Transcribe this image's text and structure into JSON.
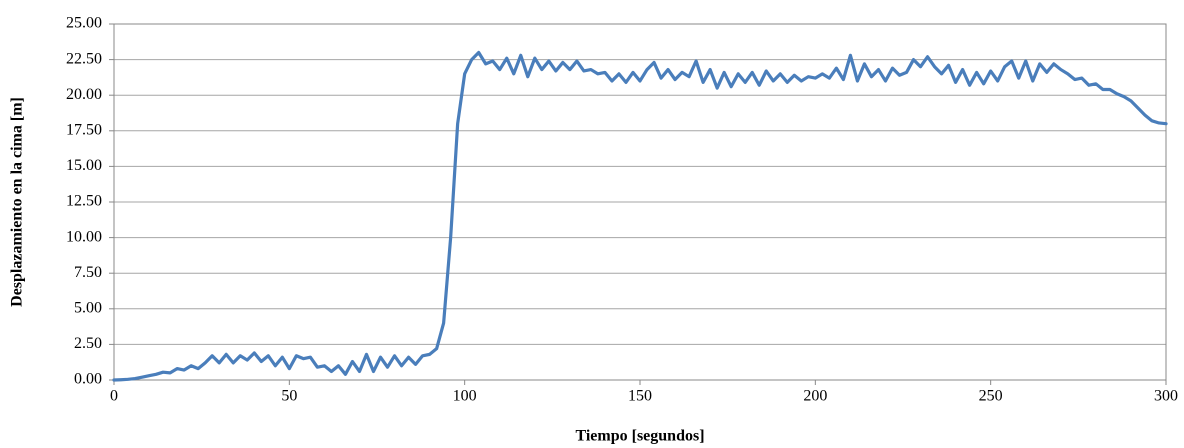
{
  "chart_data": {
    "type": "line",
    "xlabel": "Tiempo [segundos]",
    "ylabel": "Desplazamiento en la cima [m]",
    "color": "#4a7ebb",
    "grid": true,
    "x": [
      0,
      2,
      4,
      6,
      8,
      10,
      12,
      14,
      16,
      18,
      20,
      22,
      24,
      26,
      28,
      30,
      32,
      34,
      36,
      38,
      40,
      42,
      44,
      46,
      48,
      50,
      52,
      54,
      56,
      58,
      60,
      62,
      64,
      66,
      68,
      70,
      72,
      74,
      76,
      78,
      80,
      82,
      84,
      86,
      88,
      90,
      92,
      94,
      96,
      98,
      100,
      102,
      104,
      106,
      108,
      110,
      112,
      114,
      116,
      118,
      120,
      122,
      124,
      126,
      128,
      130,
      132,
      134,
      136,
      138,
      140,
      142,
      144,
      146,
      148,
      150,
      152,
      154,
      156,
      158,
      160,
      162,
      164,
      166,
      168,
      170,
      172,
      174,
      176,
      178,
      180,
      182,
      184,
      186,
      188,
      190,
      192,
      194,
      196,
      198,
      200,
      202,
      204,
      206,
      208,
      210,
      212,
      214,
      216,
      218,
      220,
      222,
      224,
      226,
      228,
      230,
      232,
      234,
      236,
      238,
      240,
      242,
      244,
      246,
      248,
      250,
      252,
      254,
      256,
      258,
      260,
      262,
      264,
      266,
      268,
      270,
      272,
      274,
      276,
      278,
      280,
      282,
      284,
      286,
      288,
      290,
      292,
      294,
      296,
      298,
      300
    ],
    "values": [
      0,
      0.02,
      0.05,
      0.1,
      0.2,
      0.3,
      0.4,
      0.55,
      0.5,
      0.8,
      0.7,
      1.0,
      0.8,
      1.2,
      1.7,
      1.2,
      1.8,
      1.2,
      1.7,
      1.4,
      1.9,
      1.3,
      1.7,
      1.0,
      1.6,
      0.8,
      1.7,
      1.5,
      1.6,
      0.9,
      1.0,
      0.6,
      1.0,
      0.4,
      1.3,
      0.6,
      1.8,
      0.6,
      1.6,
      0.9,
      1.7,
      1.0,
      1.6,
      1.1,
      1.7,
      1.8,
      2.2,
      4.0,
      10.0,
      18.0,
      21.5,
      22.5,
      23.0,
      22.2,
      22.4,
      21.8,
      22.6,
      21.5,
      22.8,
      21.3,
      22.6,
      21.8,
      22.4,
      21.7,
      22.3,
      21.8,
      22.4,
      21.7,
      21.8,
      21.5,
      21.6,
      21.0,
      21.5,
      20.9,
      21.6,
      21.0,
      21.8,
      22.3,
      21.2,
      21.8,
      21.1,
      21.6,
      21.3,
      22.4,
      20.9,
      21.8,
      20.5,
      21.6,
      20.6,
      21.5,
      20.9,
      21.6,
      20.7,
      21.7,
      21.0,
      21.5,
      20.9,
      21.4,
      21.0,
      21.3,
      21.2,
      21.5,
      21.2,
      21.9,
      21.1,
      22.8,
      21.0,
      22.2,
      21.3,
      21.8,
      21.0,
      21.9,
      21.4,
      21.6,
      22.5,
      22.0,
      22.7,
      22.0,
      21.5,
      22.1,
      20.9,
      21.8,
      20.7,
      21.6,
      20.8,
      21.7,
      21.0,
      22.0,
      22.4,
      21.2,
      22.4,
      21.0,
      22.2,
      21.6,
      22.2,
      21.8,
      21.5,
      21.1,
      21.2,
      20.7,
      20.8,
      20.4,
      20.4,
      20.1,
      19.9,
      19.6,
      19.1,
      18.6,
      18.2,
      18.05,
      18.0
    ],
    "xlim": [
      0,
      300
    ],
    "xticks": [
      0,
      50,
      100,
      150,
      200,
      250,
      300
    ],
    "ylim": [
      0,
      25
    ],
    "yticks": [
      {
        "value": 0,
        "label": "0.00"
      },
      {
        "value": 2.5,
        "label": "2.50"
      },
      {
        "value": 5,
        "label": "5.00"
      },
      {
        "value": 7.5,
        "label": "7.50"
      },
      {
        "value": 10,
        "label": "10.00"
      },
      {
        "value": 12.5,
        "label": "12.50"
      },
      {
        "value": 15,
        "label": "15.00"
      },
      {
        "value": 17.5,
        "label": "17.50"
      },
      {
        "value": 20,
        "label": "20.00"
      },
      {
        "value": 22.5,
        "label": "22.50"
      },
      {
        "value": 25,
        "label": "25.00"
      }
    ]
  }
}
